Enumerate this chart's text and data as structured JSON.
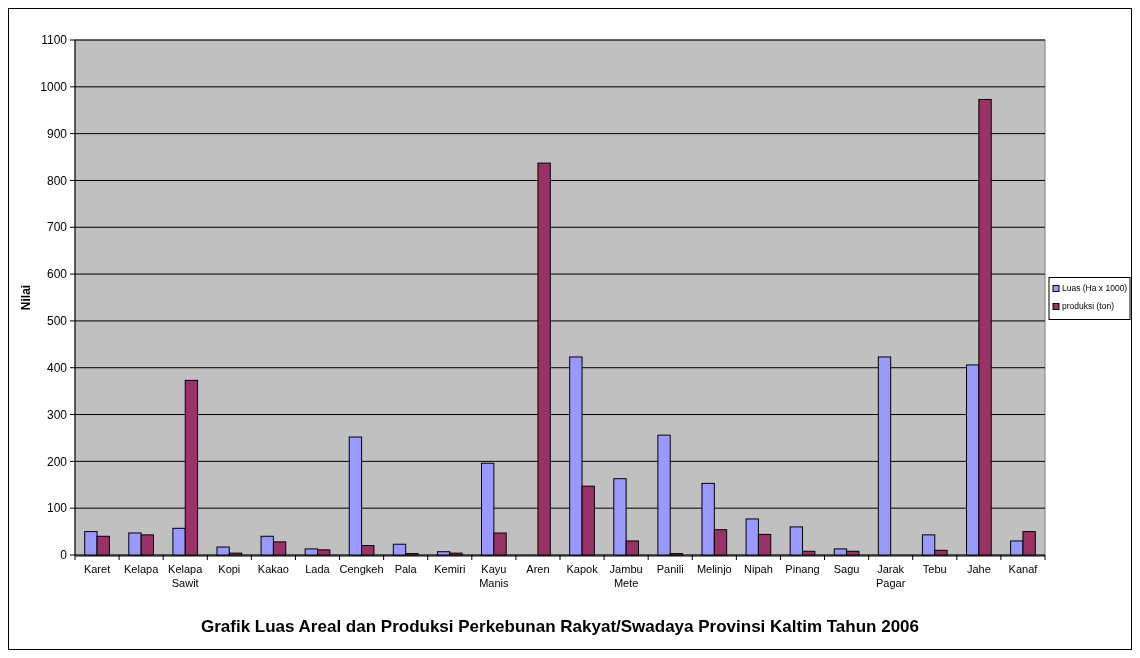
{
  "chart_data": {
    "type": "bar",
    "title": "Grafik Luas Areal dan Produksi Perkebunan Rakyat/Swadaya Provinsi Kaltim Tahun 2006",
    "ylabel": "Nilai",
    "categories": [
      "Karet",
      "Kelapa",
      "Kelapa Sawit",
      "Kopi",
      "Kakao",
      "Lada",
      "Cengkeh",
      "Pala",
      "Kemiri",
      "Kayu Manis",
      "Aren",
      "Kapok",
      "Jambu Mete",
      "Panili",
      "Melinjo",
      "Nipah",
      "Pinang",
      "Sagu",
      "Jarak Pagar",
      "Tebu",
      "Jahe",
      "Kanaf"
    ],
    "series": [
      {
        "name": "Luas (Ha x 1000)",
        "color": "#9999ff",
        "values": [
          50,
          47,
          57,
          17,
          40,
          13,
          252,
          23,
          7,
          196,
          0,
          423,
          163,
          256,
          153,
          77,
          60,
          13,
          423,
          43,
          406,
          30
        ]
      },
      {
        "name": "produksi (ton)",
        "color": "#993366",
        "values": [
          40,
          43,
          373,
          4,
          28,
          11,
          20,
          3,
          4,
          47,
          837,
          147,
          30,
          3,
          54,
          44,
          8,
          8,
          0,
          10,
          973,
          50
        ]
      }
    ],
    "ylim": [
      0,
      1100
    ],
    "yticks": [
      0,
      100,
      200,
      300,
      400,
      500,
      600,
      700,
      800,
      900,
      1000,
      1100
    ],
    "grid": "y",
    "legend": "right"
  }
}
